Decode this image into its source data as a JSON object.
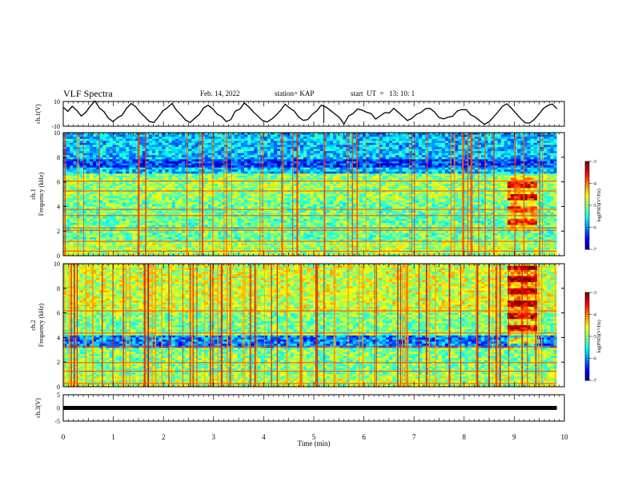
{
  "header": {
    "title": "VLF Spectra",
    "date": "Feb. 14, 2022",
    "station": "station= KAP",
    "start": "start  UT  =   13: 10: 1"
  },
  "chart_data": [
    {
      "type": "line",
      "panel": "ch1-waveform",
      "ylabel": "ch.1(V)",
      "ylim": [
        -10,
        10
      ],
      "ticks": [
        "10",
        "-10"
      ],
      "series": [
        {
          "values": [
            4,
            2,
            6,
            3,
            -2,
            1,
            7,
            9,
            5,
            2,
            -3,
            -6,
            -4,
            0,
            5,
            8,
            6,
            2,
            -1,
            -5,
            -7,
            -3,
            2,
            6,
            7,
            3,
            -2,
            -6,
            -8,
            -5,
            0,
            4,
            6,
            5,
            1,
            -3,
            -6,
            -4,
            1,
            5,
            8,
            6,
            2,
            -2,
            -5,
            -7,
            -4,
            0,
            4,
            7,
            5,
            1,
            -3,
            -6,
            -5,
            -1,
            3,
            6,
            7,
            4,
            0,
            -4,
            -7,
            -3,
            1,
            3,
            2,
            1,
            -1,
            -3,
            -2,
            0,
            2,
            3,
            1,
            -2,
            -4,
            -3,
            -1,
            2,
            4,
            3,
            0,
            -3,
            -5,
            -4,
            -1,
            2,
            4,
            3,
            0,
            -4,
            -7,
            -8,
            -6,
            -2,
            2,
            5,
            7,
            4,
            0,
            -3,
            -6,
            -7,
            -5,
            -1,
            3,
            6,
            8,
            5
          ]
        }
      ]
    },
    {
      "type": "heatmap",
      "panel": "ch1-spectrogram",
      "ylabel": "ch.1\nFrequency (kHz)",
      "ylim": [
        0,
        10
      ],
      "yticks": [
        0,
        2,
        4,
        6,
        8,
        10
      ],
      "colorbar": {
        "label": "log(PSD)(V²/Hz)",
        "range": [
          -7,
          -3
        ],
        "ticks": [
          -3,
          -4,
          -5,
          -6,
          -7
        ]
      }
    },
    {
      "type": "heatmap",
      "panel": "ch2-spectrogram",
      "ylabel": "ch.2\nFrequency (kHz)",
      "ylim": [
        0,
        10
      ],
      "yticks": [
        0,
        2,
        4,
        6,
        8,
        10
      ],
      "colorbar": {
        "label": "log(PSD)(V²/Hz)",
        "range": [
          -7,
          -3
        ],
        "ticks": [
          -3,
          -4,
          -5,
          -6,
          -7
        ]
      }
    },
    {
      "type": "line",
      "panel": "ch3-waveform",
      "ylabel": "ch.3(V)",
      "ylim": [
        -5,
        5
      ],
      "ticks": [
        "5",
        "0",
        "-5"
      ],
      "series": [
        {
          "values": [
            0,
            0
          ]
        }
      ]
    }
  ],
  "xaxis": {
    "label": "Time  (min)",
    "range": [
      0,
      10
    ],
    "ticks": [
      "0",
      "1",
      "2",
      "3",
      "4",
      "5",
      "6",
      "7",
      "8",
      "9",
      "10"
    ]
  }
}
